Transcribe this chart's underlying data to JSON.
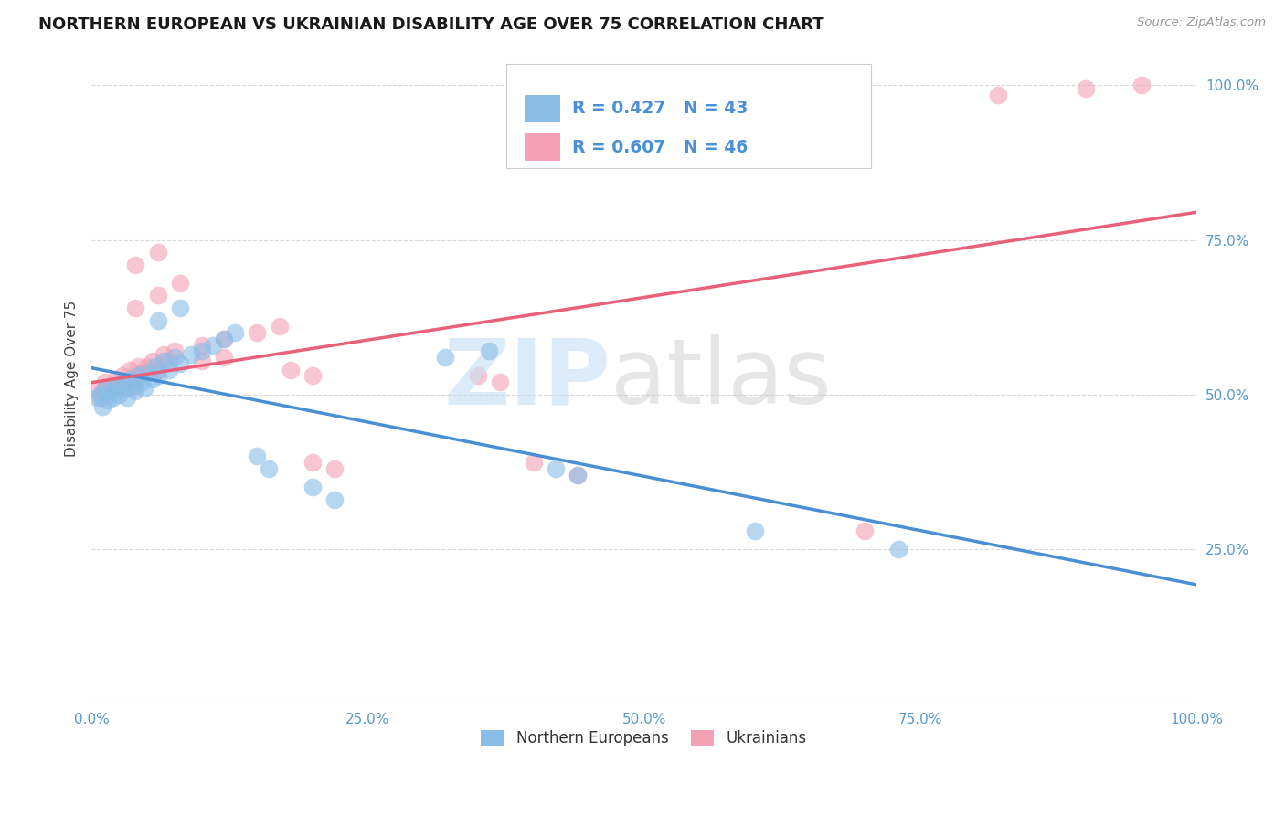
{
  "title": "NORTHERN EUROPEAN VS UKRAINIAN DISABILITY AGE OVER 75 CORRELATION CHART",
  "source": "Source: ZipAtlas.com",
  "ylabel": "Disability Age Over 75",
  "legend_ne": "Northern Europeans",
  "legend_uk": "Ukrainians",
  "r_ne": 0.427,
  "n_ne": 43,
  "r_uk": 0.607,
  "n_uk": 46,
  "color_ne": "#88bde8",
  "color_uk": "#f4a0b5",
  "trendline_ne": "#4a8fd4",
  "trendline_uk": "#e8607a",
  "grid_color": "#d8d8d8",
  "xmin": 0.0,
  "xmax": 1.0,
  "ymin": 0.0,
  "ymax": 1.0,
  "ne_points": [
    [
      0.005,
      0.495
    ],
    [
      0.008,
      0.5
    ],
    [
      0.01,
      0.48
    ],
    [
      0.012,
      0.51
    ],
    [
      0.015,
      0.49
    ],
    [
      0.018,
      0.505
    ],
    [
      0.02,
      0.495
    ],
    [
      0.022,
      0.515
    ],
    [
      0.025,
      0.5
    ],
    [
      0.028,
      0.52
    ],
    [
      0.03,
      0.51
    ],
    [
      0.032,
      0.495
    ],
    [
      0.035,
      0.525
    ],
    [
      0.038,
      0.515
    ],
    [
      0.04,
      0.505
    ],
    [
      0.042,
      0.53
    ],
    [
      0.045,
      0.52
    ],
    [
      0.048,
      0.51
    ],
    [
      0.05,
      0.535
    ],
    [
      0.055,
      0.525
    ],
    [
      0.058,
      0.545
    ],
    [
      0.06,
      0.53
    ],
    [
      0.065,
      0.555
    ],
    [
      0.07,
      0.54
    ],
    [
      0.075,
      0.56
    ],
    [
      0.08,
      0.55
    ],
    [
      0.09,
      0.565
    ],
    [
      0.1,
      0.57
    ],
    [
      0.11,
      0.58
    ],
    [
      0.12,
      0.59
    ],
    [
      0.13,
      0.6
    ],
    [
      0.06,
      0.62
    ],
    [
      0.08,
      0.64
    ],
    [
      0.15,
      0.4
    ],
    [
      0.16,
      0.38
    ],
    [
      0.2,
      0.35
    ],
    [
      0.22,
      0.33
    ],
    [
      0.32,
      0.56
    ],
    [
      0.36,
      0.57
    ],
    [
      0.42,
      0.38
    ],
    [
      0.44,
      0.37
    ],
    [
      0.6,
      0.28
    ],
    [
      0.73,
      0.25
    ]
  ],
  "uk_points": [
    [
      0.005,
      0.51
    ],
    [
      0.008,
      0.495
    ],
    [
      0.01,
      0.505
    ],
    [
      0.012,
      0.52
    ],
    [
      0.015,
      0.5
    ],
    [
      0.018,
      0.515
    ],
    [
      0.02,
      0.51
    ],
    [
      0.022,
      0.525
    ],
    [
      0.025,
      0.515
    ],
    [
      0.028,
      0.53
    ],
    [
      0.03,
      0.52
    ],
    [
      0.032,
      0.51
    ],
    [
      0.035,
      0.54
    ],
    [
      0.038,
      0.525
    ],
    [
      0.04,
      0.515
    ],
    [
      0.042,
      0.545
    ],
    [
      0.045,
      0.535
    ],
    [
      0.05,
      0.545
    ],
    [
      0.055,
      0.555
    ],
    [
      0.06,
      0.54
    ],
    [
      0.065,
      0.565
    ],
    [
      0.07,
      0.555
    ],
    [
      0.075,
      0.57
    ],
    [
      0.04,
      0.64
    ],
    [
      0.06,
      0.66
    ],
    [
      0.08,
      0.68
    ],
    [
      0.04,
      0.71
    ],
    [
      0.06,
      0.73
    ],
    [
      0.1,
      0.58
    ],
    [
      0.12,
      0.59
    ],
    [
      0.15,
      0.6
    ],
    [
      0.17,
      0.61
    ],
    [
      0.1,
      0.555
    ],
    [
      0.12,
      0.56
    ],
    [
      0.18,
      0.54
    ],
    [
      0.2,
      0.53
    ],
    [
      0.2,
      0.39
    ],
    [
      0.22,
      0.38
    ],
    [
      0.35,
      0.53
    ],
    [
      0.37,
      0.52
    ],
    [
      0.4,
      0.39
    ],
    [
      0.44,
      0.37
    ],
    [
      0.7,
      0.28
    ],
    [
      0.82,
      0.985
    ],
    [
      0.9,
      0.995
    ],
    [
      0.95,
      1.0
    ]
  ],
  "bg_color": "#ffffff"
}
